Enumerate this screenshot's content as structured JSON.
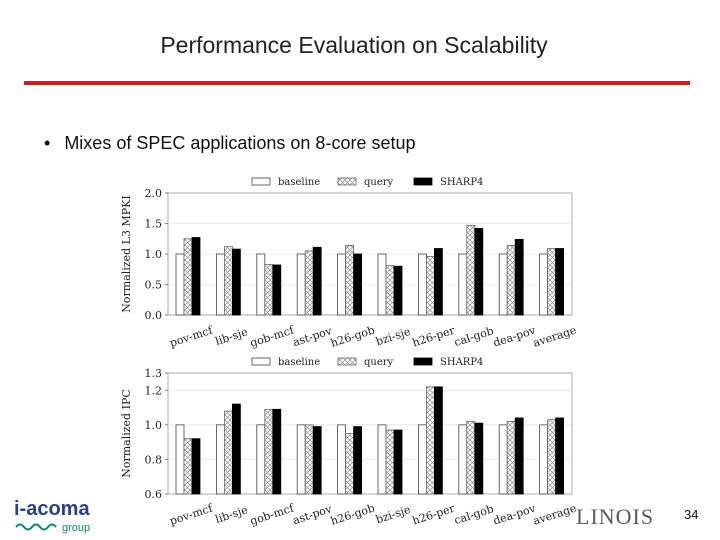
{
  "slide": {
    "title": "Performance Evaluation on Scalability",
    "bullet": "Mixes of SPEC applications on 8-core setup",
    "page_number": "34",
    "logo_left": {
      "text": "i-acoma",
      "sub": "group"
    },
    "logo_right": "LINOIS"
  },
  "colors": {
    "title_rule": "#d01c1c",
    "query_hatch": "#999999",
    "sharp4": "#000000"
  },
  "chart_data": [
    {
      "type": "bar",
      "categories": [
        "pov-mcf",
        "lib-sje",
        "gob-mcf",
        "ast-pov",
        "h26-gob",
        "bzi-sje",
        "h26-per",
        "cal-gob",
        "dea-pov",
        "average"
      ],
      "series": [
        {
          "name": "baseline",
          "values": [
            1.0,
            1.0,
            1.0,
            1.0,
            1.0,
            1.0,
            1.0,
            1.0,
            1.0,
            1.0
          ]
        },
        {
          "name": "query",
          "values": [
            1.25,
            1.12,
            0.83,
            1.05,
            1.14,
            0.81,
            0.96,
            1.47,
            1.14,
            1.09
          ]
        },
        {
          "name": "SHARP4",
          "values": [
            1.27,
            1.08,
            0.82,
            1.11,
            1.0,
            0.8,
            1.09,
            1.42,
            1.24,
            1.09
          ]
        }
      ],
      "ylabel": "Normalized L3 MPKI",
      "ylim": [
        0.0,
        2.0
      ],
      "yticks": [
        "0.0",
        "0.5",
        "1.0",
        "1.5",
        "2.0"
      ],
      "legend": "top"
    },
    {
      "type": "bar",
      "categories": [
        "pov-mcf",
        "lib-sje",
        "gob-mcf",
        "ast-pov",
        "h26-gob",
        "bzi-sje",
        "h26-per",
        "cal-gob",
        "dea-pov",
        "average"
      ],
      "series": [
        {
          "name": "baseline",
          "values": [
            1.0,
            1.0,
            1.0,
            1.0,
            1.0,
            1.0,
            1.0,
            1.0,
            1.0,
            1.0
          ]
        },
        {
          "name": "query",
          "values": [
            0.92,
            1.08,
            1.09,
            1.0,
            0.95,
            0.97,
            1.22,
            1.02,
            1.02,
            1.03
          ]
        },
        {
          "name": "SHARP4",
          "values": [
            0.92,
            1.12,
            1.09,
            0.99,
            0.99,
            0.97,
            1.22,
            1.01,
            1.04,
            1.04
          ]
        }
      ],
      "ylabel": "Normalized IPC",
      "ylim": [
        0.6,
        1.3
      ],
      "yticks": [
        "0.6",
        "0.8",
        "1.0",
        "1.2",
        "1.3"
      ],
      "legend": "top"
    }
  ]
}
